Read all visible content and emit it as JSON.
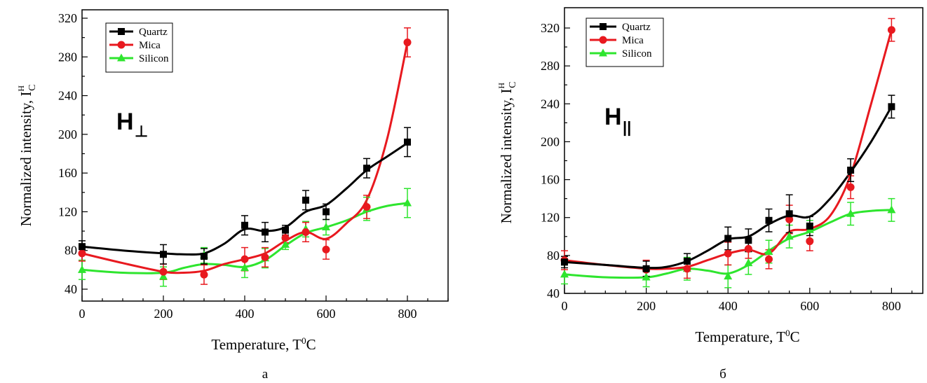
{
  "colors": {
    "Quartz": "#000000",
    "Mica": "#e8191f",
    "Silicon": "#2ee52e"
  },
  "chart_data": [
    {
      "type": "line",
      "panel_label": "а",
      "field_symbol": "H",
      "field_subscript": "⊥",
      "xlabel": "Temperature, T",
      "xlabel_sup": "0",
      "xlabel_tail": "C",
      "ylabel": "Normalized intensity, I",
      "ylabel_sup": "H",
      "ylabel_sub": "C",
      "xlim": [
        0,
        900
      ],
      "ylim": [
        30,
        320
      ],
      "xticks": [
        0,
        200,
        400,
        600,
        800
      ],
      "yticks": [
        40,
        80,
        120,
        160,
        200,
        240,
        280,
        320
      ],
      "legend_position": "top-left",
      "series": [
        {
          "name": "Quartz",
          "marker": "square",
          "x": [
            0,
            200,
            300,
            400,
            450,
            500,
            550,
            600,
            700,
            800
          ],
          "y": [
            84,
            76,
            74,
            106,
            99,
            101,
            132,
            120,
            165,
            192
          ],
          "err": [
            6,
            10,
            8,
            10,
            10,
            5,
            10,
            8,
            10,
            15
          ],
          "curve_x": [
            0,
            100,
            200,
            250,
            300,
            350,
            400,
            450,
            500,
            550,
            600,
            650,
            700,
            750,
            800
          ],
          "curve_y": [
            84,
            80,
            77,
            76,
            77,
            87,
            102,
            100,
            104,
            120,
            127,
            144,
            163,
            177,
            191
          ]
        },
        {
          "name": "Mica",
          "marker": "circle",
          "x": [
            0,
            200,
            300,
            400,
            450,
            500,
            550,
            600,
            700,
            800
          ],
          "y": [
            77,
            58,
            55,
            71,
            73,
            93,
            99,
            81,
            125,
            295
          ],
          "err": [
            8,
            8,
            10,
            12,
            10,
            5,
            10,
            10,
            12,
            15
          ],
          "curve_x": [
            0,
            100,
            200,
            250,
            300,
            350,
            400,
            450,
            500,
            550,
            600,
            650,
            700,
            750,
            800
          ],
          "curve_y": [
            77,
            67,
            58,
            57,
            59,
            66,
            71,
            77,
            90,
            99,
            92,
            108,
            132,
            195,
            295
          ]
        },
        {
          "name": "Silicon",
          "marker": "triangle",
          "x": [
            0,
            200,
            300,
            400,
            450,
            500,
            550,
            600,
            700,
            800
          ],
          "y": [
            60,
            53,
            75,
            62,
            72,
            86,
            102,
            104,
            123,
            129
          ],
          "err": [
            10,
            10,
            8,
            10,
            10,
            5,
            8,
            8,
            12,
            15
          ],
          "curve_x": [
            0,
            100,
            200,
            250,
            300,
            350,
            400,
            450,
            500,
            550,
            600,
            650,
            700,
            750,
            800
          ],
          "curve_y": [
            60,
            57,
            57,
            62,
            66,
            65,
            63,
            70,
            85,
            98,
            104,
            111,
            120,
            126,
            129
          ]
        }
      ]
    },
    {
      "type": "line",
      "panel_label": "б",
      "field_symbol": "H",
      "field_subscript": "||",
      "xlabel": "Temperature, T",
      "xlabel_sup": "0",
      "xlabel_tail": "C",
      "ylabel": "Normalized intensity, I",
      "ylabel_sup": "H",
      "ylabel_sub": "C",
      "xlim": [
        0,
        900
      ],
      "ylim": [
        40,
        340
      ],
      "xticks": [
        0,
        200,
        400,
        600,
        800
      ],
      "yticks": [
        40,
        80,
        120,
        160,
        200,
        240,
        280,
        320
      ],
      "legend_position": "top-left",
      "series": [
        {
          "name": "Quartz",
          "marker": "square",
          "x": [
            0,
            200,
            300,
            400,
            450,
            500,
            550,
            600,
            700,
            800
          ],
          "y": [
            73,
            66,
            74,
            98,
            96,
            117,
            124,
            111,
            170,
            237
          ],
          "err": [
            6,
            8,
            8,
            12,
            12,
            12,
            20,
            10,
            12,
            12
          ],
          "curve_x": [
            0,
            100,
            200,
            250,
            300,
            350,
            400,
            450,
            500,
            550,
            600,
            650,
            700,
            750,
            800
          ],
          "curve_y": [
            73,
            70,
            67,
            68,
            74,
            85,
            97,
            100,
            113,
            122,
            121,
            140,
            168,
            200,
            237
          ]
        },
        {
          "name": "Mica",
          "marker": "circle",
          "x": [
            0,
            200,
            300,
            400,
            450,
            500,
            550,
            600,
            700,
            800
          ],
          "y": [
            75,
            65,
            66,
            82,
            87,
            76,
            118,
            95,
            152,
            318
          ],
          "err": [
            10,
            10,
            10,
            12,
            10,
            10,
            15,
            10,
            12,
            12
          ],
          "curve_x": [
            0,
            100,
            200,
            250,
            300,
            350,
            400,
            450,
            500,
            550,
            600,
            650,
            700,
            750,
            800
          ],
          "curve_y": [
            75,
            70,
            66,
            66,
            68,
            75,
            82,
            86,
            82,
            105,
            108,
            122,
            165,
            240,
            318
          ]
        },
        {
          "name": "Silicon",
          "marker": "triangle",
          "x": [
            0,
            200,
            300,
            400,
            450,
            500,
            550,
            600,
            700,
            800
          ],
          "y": [
            60,
            57,
            66,
            58,
            72,
            84,
            100,
            107,
            124,
            128
          ],
          "err": [
            10,
            10,
            12,
            12,
            12,
            12,
            12,
            10,
            12,
            12
          ],
          "curve_x": [
            0,
            100,
            200,
            250,
            300,
            350,
            400,
            450,
            500,
            550,
            600,
            650,
            700,
            750,
            800
          ],
          "curve_y": [
            60,
            57,
            57,
            61,
            66,
            64,
            61,
            70,
            85,
            98,
            105,
            115,
            124,
            127,
            128
          ]
        }
      ]
    }
  ]
}
